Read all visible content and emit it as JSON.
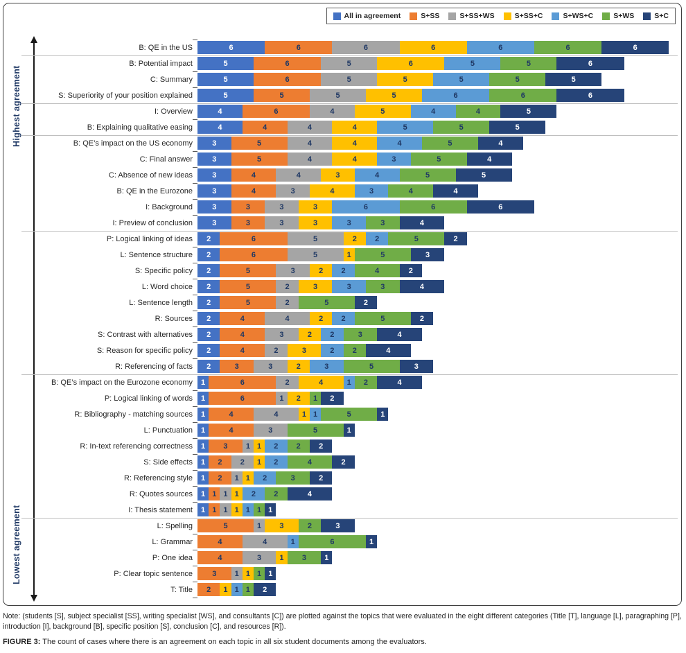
{
  "legend": {
    "items": [
      {
        "label": "All in agreement",
        "color": "#4472C4"
      },
      {
        "label": "S+SS",
        "color": "#ED7D31"
      },
      {
        "label": "S+SS+WS",
        "color": "#A5A5A5"
      },
      {
        "label": "S+SS+C",
        "color": "#FFC000"
      },
      {
        "label": "S+WS+C",
        "color": "#5B9BD5"
      },
      {
        "label": "S+WS",
        "color": "#70AD47"
      },
      {
        "label": "S+C",
        "color": "#264478"
      }
    ]
  },
  "axis_annotations": {
    "highest": "Highest agreement",
    "lowest": "Lowest agreement"
  },
  "chart_data": {
    "type": "bar",
    "orientation": "horizontal-stacked",
    "xlim": [
      0,
      42
    ],
    "grid": false,
    "legend_position": "top-right",
    "series_names": [
      "All in agreement",
      "S+SS",
      "S+SS+WS",
      "S+SS+C",
      "S+WS+C",
      "S+WS",
      "S+C"
    ],
    "series_colors": [
      "#4472C4",
      "#ED7D31",
      "#A5A5A5",
      "#FFC000",
      "#5B9BD5",
      "#70AD47",
      "#264478"
    ],
    "light_text_series": [
      0,
      6
    ],
    "categories": [
      "B: QE in the US",
      "B: Potential impact",
      "C: Summary",
      "S: Superiority of your position explained",
      "I: Overview",
      "B: Explaining qualitative easing",
      "B: QE’s impact on the US economy",
      "C: Final answer",
      "C: Absence of new ideas",
      "B: QE in the Eurozone",
      "I: Background",
      "I: Preview of conclusion",
      "P: Logical linking of ideas",
      "L: Sentence structure",
      "S: Specific policy",
      "L: Word choice",
      "L: Sentence length",
      "R: Sources",
      "S: Contrast with alternatives",
      "S: Reason for specific policy",
      "R: Referencing of facts",
      "B: QE’s impact on the Eurozone economy",
      "P: Logical linking of words",
      "R: Bibliography - matching sources",
      "L: Punctuation",
      "R: In-text referencing correctness",
      "S: Side effects",
      "R: Referencing style",
      "R: Quotes sources",
      "I: Thesis statement",
      "L: Spelling",
      "L: Grammar",
      "P: One idea",
      "P: Clear topic sentence",
      "T: Title"
    ],
    "rows": [
      [
        6,
        6,
        6,
        6,
        6,
        6,
        6
      ],
      [
        5,
        6,
        5,
        6,
        5,
        5,
        6
      ],
      [
        5,
        6,
        5,
        5,
        5,
        5,
        5
      ],
      [
        5,
        5,
        5,
        5,
        6,
        6,
        6
      ],
      [
        4,
        6,
        4,
        5,
        4,
        4,
        5
      ],
      [
        4,
        4,
        4,
        4,
        5,
        5,
        5
      ],
      [
        3,
        5,
        4,
        4,
        4,
        5,
        4
      ],
      [
        3,
        5,
        4,
        4,
        3,
        5,
        4
      ],
      [
        3,
        4,
        4,
        3,
        4,
        5,
        5
      ],
      [
        3,
        4,
        3,
        4,
        3,
        4,
        4
      ],
      [
        3,
        3,
        3,
        3,
        6,
        6,
        6
      ],
      [
        3,
        3,
        3,
        3,
        3,
        3,
        4
      ],
      [
        2,
        6,
        5,
        2,
        2,
        5,
        2
      ],
      [
        2,
        6,
        5,
        1,
        0,
        5,
        3
      ],
      [
        2,
        5,
        3,
        2,
        2,
        4,
        2
      ],
      [
        2,
        5,
        2,
        3,
        3,
        3,
        4
      ],
      [
        2,
        5,
        2,
        0,
        0,
        5,
        2
      ],
      [
        2,
        4,
        4,
        2,
        2,
        5,
        2
      ],
      [
        2,
        4,
        3,
        2,
        2,
        3,
        4
      ],
      [
        2,
        4,
        2,
        3,
        2,
        2,
        4
      ],
      [
        2,
        3,
        3,
        2,
        3,
        5,
        3
      ],
      [
        1,
        6,
        2,
        4,
        1,
        2,
        4
      ],
      [
        1,
        6,
        1,
        2,
        0,
        1,
        2
      ],
      [
        1,
        4,
        4,
        1,
        1,
        5,
        1
      ],
      [
        1,
        4,
        3,
        0,
        0,
        5,
        1
      ],
      [
        1,
        3,
        1,
        1,
        2,
        2,
        2
      ],
      [
        1,
        2,
        2,
        1,
        2,
        4,
        2
      ],
      [
        1,
        2,
        1,
        1,
        2,
        3,
        2
      ],
      [
        1,
        1,
        1,
        1,
        2,
        2,
        4
      ],
      [
        1,
        1,
        1,
        1,
        1,
        1,
        1
      ],
      [
        0,
        5,
        1,
        3,
        0,
        2,
        3
      ],
      [
        0,
        4,
        4,
        0,
        1,
        6,
        1
      ],
      [
        0,
        4,
        3,
        1,
        0,
        3,
        1
      ],
      [
        0,
        3,
        1,
        1,
        0,
        1,
        1
      ],
      [
        0,
        2,
        0,
        1,
        1,
        1,
        2
      ]
    ]
  },
  "note": {
    "text": "Note: (students [S], subject specialist [SS], writing specialist [WS], and consultants [C]) are plotted against the topics that were evaluated in the eight different categories (Title [T], language [L], paragraphing [P], introduction [I], background [B], specific position [S], conclusion [C], and resources [R])."
  },
  "caption": {
    "label": "FIGURE 3:",
    "text": " The count of cases where there is an agreement on each topic in all six student documents among the evaluators."
  }
}
